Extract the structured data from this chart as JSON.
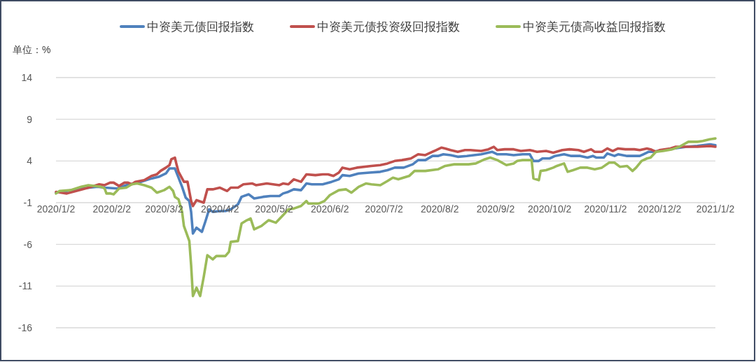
{
  "chart_data": {
    "type": "line",
    "ylabel": "单位：%",
    "xlim": [
      "2020-01-02",
      "2021-01-02"
    ],
    "xticks": [
      {
        "value": "2020-01-02",
        "label": "2020/1/2"
      },
      {
        "value": "2020-02-02",
        "label": "2020/2/2"
      },
      {
        "value": "2020-03-02",
        "label": "2020/3/2"
      },
      {
        "value": "2020-04-02",
        "label": "2020/4/2"
      },
      {
        "value": "2020-05-02",
        "label": "2020/5/2"
      },
      {
        "value": "2020-06-02",
        "label": "2020/6/2"
      },
      {
        "value": "2020-07-02",
        "label": "2020/7/2"
      },
      {
        "value": "2020-08-02",
        "label": "2020/8/2"
      },
      {
        "value": "2020-09-02",
        "label": "2020/9/2"
      },
      {
        "value": "2020-10-02",
        "label": "2020/10/2"
      },
      {
        "value": "2020-11-02",
        "label": "2020/11/2"
      },
      {
        "value": "2020-12-02",
        "label": "2020/12/2"
      },
      {
        "value": "2021-01-02",
        "label": "2021/1/2"
      }
    ],
    "ylim": [
      -16,
      14
    ],
    "yticks": [
      -16,
      -11,
      -6,
      -1,
      4,
      9,
      14
    ],
    "grid": "y",
    "legend": "top",
    "series": [
      {
        "name": "中资美元债回报指数",
        "color": "#4f81bd",
        "x": [
          "2020-01-02",
          "2020-01-08",
          "2020-01-16",
          "2020-01-25",
          "2020-01-29",
          "2020-02-05",
          "2020-02-10",
          "2020-02-18",
          "2020-02-24",
          "2020-02-28",
          "2020-03-03",
          "2020-03-05",
          "2020-03-08",
          "2020-03-10",
          "2020-03-12",
          "2020-03-14",
          "2020-03-16",
          "2020-03-17",
          "2020-03-18",
          "2020-03-20",
          "2020-03-23",
          "2020-03-25",
          "2020-03-27",
          "2020-03-29",
          "2020-04-02",
          "2020-04-05",
          "2020-04-08",
          "2020-04-12",
          "2020-04-14",
          "2020-04-18",
          "2020-04-21",
          "2020-04-26",
          "2020-04-30",
          "2020-05-05",
          "2020-05-07",
          "2020-05-10",
          "2020-05-13",
          "2020-05-17",
          "2020-05-20",
          "2020-05-23",
          "2020-05-29",
          "2020-06-03",
          "2020-06-07",
          "2020-06-09",
          "2020-06-13",
          "2020-06-18",
          "2020-06-24",
          "2020-06-30",
          "2020-07-04",
          "2020-07-08",
          "2020-07-13",
          "2020-07-18",
          "2020-07-21",
          "2020-07-25",
          "2020-07-29",
          "2020-08-01",
          "2020-08-04",
          "2020-08-08",
          "2020-08-12",
          "2020-08-17",
          "2020-08-25",
          "2020-08-31",
          "2020-09-03",
          "2020-09-08",
          "2020-09-12",
          "2020-09-17",
          "2020-09-21",
          "2020-09-23",
          "2020-09-26",
          "2020-09-28",
          "2020-10-02",
          "2020-10-05",
          "2020-10-10",
          "2020-10-14",
          "2020-10-19",
          "2020-10-23",
          "2020-10-26",
          "2020-10-28",
          "2020-11-01",
          "2020-11-03",
          "2020-11-07",
          "2020-11-09",
          "2020-11-14",
          "2020-11-21",
          "2020-11-23",
          "2020-11-26",
          "2020-11-28",
          "2020-12-04",
          "2020-12-10",
          "2020-12-17",
          "2020-12-23",
          "2020-12-30",
          "2021-01-02"
        ],
        "values": [
          0.2,
          0.4,
          0.7,
          0.9,
          0.8,
          0.7,
          1.1,
          1.5,
          1.9,
          2.1,
          2.5,
          3.1,
          3.1,
          2.0,
          0.9,
          -0.4,
          -0.8,
          -2.1,
          -4.7,
          -4.0,
          -4.5,
          -3.2,
          -1.8,
          -2.1,
          -2.0,
          -2.0,
          -1.8,
          -1.2,
          -0.3,
          0.0,
          -0.5,
          -0.3,
          -0.2,
          -0.2,
          0.1,
          0.3,
          0.6,
          0.5,
          1.3,
          1.2,
          1.2,
          1.5,
          1.8,
          2.3,
          2.2,
          2.5,
          2.6,
          2.7,
          2.9,
          3.2,
          3.2,
          3.6,
          4.1,
          4.1,
          4.6,
          4.6,
          4.8,
          4.7,
          4.5,
          4.6,
          4.8,
          5.1,
          4.8,
          4.8,
          4.7,
          4.8,
          4.8,
          4.0,
          4.0,
          4.3,
          4.3,
          4.6,
          4.8,
          4.6,
          4.6,
          4.4,
          4.6,
          4.4,
          4.4,
          4.9,
          4.6,
          4.8,
          4.6,
          4.6,
          4.8,
          5.1,
          5.1,
          5.3,
          5.5,
          5.7,
          5.8,
          6.0,
          5.9
        ]
      },
      {
        "name": "中资美元债投资级回报指数",
        "color": "#c0504d",
        "x": [
          "2020-01-02",
          "2020-01-08",
          "2020-01-15",
          "2020-01-20",
          "2020-01-26",
          "2020-01-29",
          "2020-02-01",
          "2020-02-03",
          "2020-02-06",
          "2020-02-09",
          "2020-02-11",
          "2020-02-13",
          "2020-02-15",
          "2020-02-20",
          "2020-02-24",
          "2020-02-27",
          "2020-02-29",
          "2020-03-03",
          "2020-03-05",
          "2020-03-06",
          "2020-03-08",
          "2020-03-09",
          "2020-03-10",
          "2020-03-11",
          "2020-03-13",
          "2020-03-15",
          "2020-03-17",
          "2020-03-18",
          "2020-03-20",
          "2020-03-24",
          "2020-03-25",
          "2020-03-26",
          "2020-03-29",
          "2020-04-02",
          "2020-04-06",
          "2020-04-08",
          "2020-04-12",
          "2020-04-15",
          "2020-04-20",
          "2020-04-22",
          "2020-04-28",
          "2020-05-05",
          "2020-05-07",
          "2020-05-10",
          "2020-05-13",
          "2020-05-17",
          "2020-05-20",
          "2020-05-25",
          "2020-05-29",
          "2020-06-01",
          "2020-06-04",
          "2020-06-07",
          "2020-06-09",
          "2020-06-13",
          "2020-06-17",
          "2020-06-25",
          "2020-06-30",
          "2020-07-04",
          "2020-07-08",
          "2020-07-12",
          "2020-07-17",
          "2020-07-21",
          "2020-07-25",
          "2020-07-29",
          "2020-07-31",
          "2020-08-03",
          "2020-08-05",
          "2020-08-08",
          "2020-08-12",
          "2020-08-16",
          "2020-08-19",
          "2020-08-25",
          "2020-08-29",
          "2020-09-01",
          "2020-09-03",
          "2020-09-07",
          "2020-09-12",
          "2020-09-16",
          "2020-09-21",
          "2020-09-25",
          "2020-09-30",
          "2020-10-04",
          "2020-10-09",
          "2020-10-13",
          "2020-10-18",
          "2020-10-21",
          "2020-10-25",
          "2020-10-27",
          "2020-10-31",
          "2020-11-03",
          "2020-11-06",
          "2020-11-09",
          "2020-11-13",
          "2020-11-18",
          "2020-11-21",
          "2020-11-25",
          "2020-11-27",
          "2020-11-30",
          "2020-12-02",
          "2020-12-08",
          "2020-12-11",
          "2020-12-17",
          "2020-12-23",
          "2020-12-30",
          "2021-01-02"
        ],
        "values": [
          0.3,
          0.1,
          0.5,
          0.8,
          1.2,
          1.1,
          1.4,
          1.4,
          1.0,
          1.4,
          1.4,
          1.2,
          1.5,
          1.7,
          2.2,
          2.4,
          2.8,
          3.2,
          3.5,
          4.2,
          4.4,
          3.5,
          2.7,
          2.3,
          1.5,
          1.5,
          -0.8,
          -1.4,
          -0.7,
          -1.0,
          -0.2,
          0.6,
          0.6,
          0.8,
          0.4,
          0.8,
          0.8,
          1.2,
          1.3,
          1.1,
          1.3,
          1.1,
          1.3,
          1.2,
          1.8,
          1.5,
          2.4,
          2.3,
          2.4,
          2.4,
          2.2,
          2.6,
          3.2,
          3.0,
          3.2,
          3.4,
          3.5,
          3.7,
          4.0,
          4.1,
          4.3,
          4.8,
          4.7,
          5.1,
          5.3,
          5.6,
          5.5,
          5.3,
          5.1,
          5.3,
          5.3,
          5.2,
          5.4,
          5.7,
          5.3,
          5.4,
          5.4,
          5.2,
          5.3,
          5.1,
          5.2,
          5.0,
          5.3,
          5.4,
          5.3,
          5.1,
          5.4,
          5.1,
          5.1,
          5.5,
          5.2,
          5.5,
          5.4,
          5.4,
          5.3,
          5.5,
          5.4,
          5.1,
          5.3,
          5.5,
          5.7,
          5.7,
          5.7,
          5.8,
          5.7
        ]
      },
      {
        "name": "中资美元债高收益回报指数",
        "color": "#9bbb59",
        "x": [
          "2020-01-02",
          "2020-01-04",
          "2020-01-10",
          "2020-01-16",
          "2020-01-20",
          "2020-01-27",
          "2020-01-29",
          "2020-01-30",
          "2020-02-01",
          "2020-02-03",
          "2020-02-06",
          "2020-02-10",
          "2020-02-13",
          "2020-02-16",
          "2020-02-20",
          "2020-02-24",
          "2020-02-27",
          "2020-03-02",
          "2020-03-05",
          "2020-03-07",
          "2020-03-08",
          "2020-03-10",
          "2020-03-12",
          "2020-03-13",
          "2020-03-16",
          "2020-03-17",
          "2020-03-18",
          "2020-03-20",
          "2020-03-22",
          "2020-03-24",
          "2020-03-26",
          "2020-03-29",
          "2020-03-31",
          "2020-04-05",
          "2020-04-07",
          "2020-04-08",
          "2020-04-12",
          "2020-04-14",
          "2020-04-17",
          "2020-04-19",
          "2020-04-21",
          "2020-04-25",
          "2020-04-29",
          "2020-05-03",
          "2020-05-07",
          "2020-05-10",
          "2020-05-13",
          "2020-05-17",
          "2020-05-20",
          "2020-05-21",
          "2020-05-27",
          "2020-05-30",
          "2020-06-02",
          "2020-06-07",
          "2020-06-11",
          "2020-06-14",
          "2020-06-18",
          "2020-06-22",
          "2020-06-25",
          "2020-06-30",
          "2020-07-04",
          "2020-07-07",
          "2020-07-10",
          "2020-07-16",
          "2020-07-19",
          "2020-07-25",
          "2020-08-01",
          "2020-08-05",
          "2020-08-10",
          "2020-08-18",
          "2020-08-22",
          "2020-08-27",
          "2020-08-30",
          "2020-09-03",
          "2020-09-08",
          "2020-09-12",
          "2020-09-14",
          "2020-09-17",
          "2020-09-22",
          "2020-09-23",
          "2020-09-26",
          "2020-09-27",
          "2020-09-30",
          "2020-10-04",
          "2020-10-06",
          "2020-10-10",
          "2020-10-12",
          "2020-10-15",
          "2020-10-19",
          "2020-10-23",
          "2020-10-27",
          "2020-10-31",
          "2020-11-04",
          "2020-11-07",
          "2020-11-10",
          "2020-11-14",
          "2020-11-17",
          "2020-11-19",
          "2020-11-22",
          "2020-11-25",
          "2020-11-27",
          "2020-11-30",
          "2020-12-04",
          "2020-12-09",
          "2020-12-13",
          "2020-12-18",
          "2020-12-23",
          "2020-12-26",
          "2020-12-30",
          "2021-01-02"
        ],
        "values": [
          0.1,
          0.4,
          0.5,
          0.9,
          1.1,
          0.9,
          0.7,
          0.1,
          0.1,
          0.0,
          0.7,
          0.8,
          1.2,
          1.3,
          1.1,
          0.8,
          0.2,
          0.5,
          0.9,
          0.4,
          -0.3,
          -0.6,
          -2.1,
          -3.8,
          -5.6,
          -8.5,
          -12.2,
          -11.2,
          -12.2,
          -9.9,
          -7.3,
          -7.8,
          -7.4,
          -7.4,
          -6.9,
          -5.7,
          -5.6,
          -3.5,
          -3.1,
          -2.9,
          -4.2,
          -3.8,
          -3.1,
          -3.4,
          -2.5,
          -1.8,
          -1.7,
          -1.4,
          -0.8,
          -1.1,
          -1.1,
          -0.8,
          -0.1,
          0.5,
          0.6,
          0.2,
          0.9,
          1.3,
          1.2,
          1.1,
          1.6,
          2.0,
          1.8,
          2.2,
          2.8,
          2.8,
          3.0,
          3.4,
          3.6,
          3.6,
          3.7,
          4.2,
          4.4,
          4.1,
          3.5,
          3.7,
          4.0,
          4.1,
          4.1,
          1.9,
          1.7,
          2.8,
          2.9,
          3.2,
          3.4,
          3.7,
          2.7,
          2.9,
          3.2,
          3.2,
          3.0,
          3.2,
          3.8,
          3.8,
          3.3,
          3.4,
          2.8,
          3.2,
          4.0,
          4.3,
          4.4,
          5.1,
          5.2,
          5.4,
          5.7,
          6.3,
          6.3,
          6.4,
          6.6,
          6.7
        ]
      }
    ]
  }
}
